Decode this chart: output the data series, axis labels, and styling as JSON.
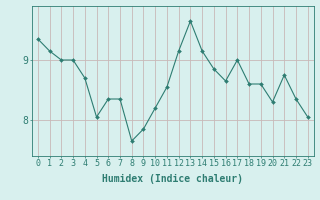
{
  "x": [
    0,
    1,
    2,
    3,
    4,
    5,
    6,
    7,
    8,
    9,
    10,
    11,
    12,
    13,
    14,
    15,
    16,
    17,
    18,
    19,
    20,
    21,
    22,
    23
  ],
  "y": [
    9.35,
    9.15,
    9.0,
    9.0,
    8.7,
    8.05,
    8.35,
    8.35,
    7.65,
    7.85,
    8.2,
    8.55,
    9.15,
    9.65,
    9.15,
    8.85,
    8.65,
    9.0,
    8.6,
    8.6,
    8.3,
    8.75,
    8.35,
    8.05
  ],
  "line_color": "#2e7d72",
  "marker": "D",
  "marker_size": 2,
  "bg_color": "#d8f0ee",
  "grid_color": "#c8b8b8",
  "axis_color": "#2e7d72",
  "xlabel": "Humidex (Indice chaleur)",
  "yticks": [
    8,
    9
  ],
  "xticks": [
    0,
    1,
    2,
    3,
    4,
    5,
    6,
    7,
    8,
    9,
    10,
    11,
    12,
    13,
    14,
    15,
    16,
    17,
    18,
    19,
    20,
    21,
    22,
    23
  ],
  "xlim": [
    -0.5,
    23.5
  ],
  "ylim": [
    7.4,
    9.9
  ],
  "label_fontsize": 7,
  "tick_fontsize": 6
}
